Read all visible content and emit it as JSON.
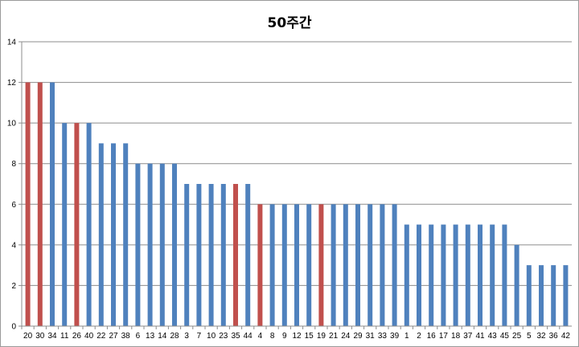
{
  "chart_data": {
    "type": "bar",
    "title": "50주간",
    "xlabel": "",
    "ylabel": "",
    "ylim": [
      0,
      14
    ],
    "yticks": [
      0,
      2,
      4,
      6,
      8,
      10,
      12,
      14
    ],
    "grid": true,
    "legend": "none",
    "categories": [
      "20",
      "30",
      "34",
      "11",
      "26",
      "40",
      "22",
      "27",
      "38",
      "6",
      "13",
      "14",
      "28",
      "3",
      "7",
      "10",
      "23",
      "35",
      "44",
      "4",
      "8",
      "9",
      "12",
      "15",
      "19",
      "21",
      "24",
      "29",
      "31",
      "33",
      "39",
      "1",
      "2",
      "16",
      "17",
      "18",
      "37",
      "41",
      "43",
      "45",
      "25",
      "5",
      "32",
      "36",
      "42"
    ],
    "values": [
      12,
      12,
      12,
      10,
      10,
      10,
      9,
      9,
      9,
      8,
      8,
      8,
      8,
      7,
      7,
      7,
      7,
      7,
      7,
      6,
      6,
      6,
      6,
      6,
      6,
      6,
      6,
      6,
      6,
      6,
      6,
      5,
      5,
      5,
      5,
      5,
      5,
      5,
      5,
      5,
      4,
      3,
      3,
      3,
      3
    ],
    "highlighted": [
      "20",
      "30",
      "26",
      "35",
      "4",
      "19"
    ],
    "colors": {
      "default": "#4f81bd",
      "highlight": "#c0504d",
      "grid": "#8c8c8c"
    }
  }
}
